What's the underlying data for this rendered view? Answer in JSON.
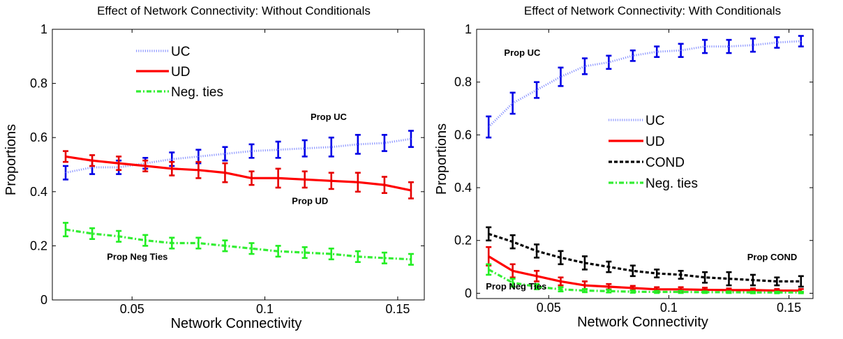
{
  "chart_data": [
    {
      "type": "line",
      "title": "Effect of Network Connectivity: Without Conditionals",
      "xlabel": "Network Connectivity",
      "ylabel": "Proportions",
      "xlim": [
        0.02,
        0.16
      ],
      "ylim": [
        0,
        1
      ],
      "xticks": [
        0.05,
        0.1,
        0.15
      ],
      "xtick_labels": [
        "0.05",
        "0.1",
        "0.15"
      ],
      "yticks": [
        0,
        0.2,
        0.4,
        0.6,
        0.8,
        1
      ],
      "ytick_labels": [
        "0",
        "0.2",
        "0.4",
        "0.6",
        "0.8",
        "1"
      ],
      "grid": false,
      "legend_position": "top-center",
      "x": [
        0.025,
        0.035,
        0.045,
        0.055,
        0.065,
        0.075,
        0.085,
        0.095,
        0.105,
        0.115,
        0.125,
        0.135,
        0.145,
        0.155
      ],
      "series": [
        {
          "name": "UC",
          "color": "#8c96ff",
          "style": "dotted",
          "error_color": "#0000e6",
          "values": [
            0.47,
            0.49,
            0.49,
            0.505,
            0.52,
            0.53,
            0.54,
            0.55,
            0.555,
            0.56,
            0.565,
            0.575,
            0.58,
            0.595
          ],
          "errors": [
            0.025,
            0.025,
            0.025,
            0.02,
            0.025,
            0.025,
            0.025,
            0.025,
            0.03,
            0.03,
            0.035,
            0.035,
            0.03,
            0.03
          ]
        },
        {
          "name": "UD",
          "color": "#ff0000",
          "style": "solid",
          "error_color": "#e60000",
          "values": [
            0.53,
            0.515,
            0.505,
            0.495,
            0.485,
            0.48,
            0.47,
            0.45,
            0.45,
            0.445,
            0.44,
            0.435,
            0.425,
            0.405
          ],
          "errors": [
            0.02,
            0.02,
            0.025,
            0.02,
            0.025,
            0.03,
            0.035,
            0.025,
            0.035,
            0.03,
            0.03,
            0.035,
            0.03,
            0.03
          ]
        },
        {
          "name": "Neg. ties",
          "color": "#33ee33",
          "style": "dashdot",
          "error_color": "#22ee22",
          "values": [
            0.26,
            0.245,
            0.235,
            0.22,
            0.21,
            0.21,
            0.2,
            0.19,
            0.18,
            0.175,
            0.17,
            0.16,
            0.155,
            0.15
          ],
          "errors": [
            0.025,
            0.02,
            0.02,
            0.02,
            0.02,
            0.02,
            0.02,
            0.02,
            0.02,
            0.02,
            0.02,
            0.02,
            0.02,
            0.02
          ]
        }
      ],
      "annotations": [
        {
          "text": "Prop UC",
          "x": 0.124,
          "y": 0.665
        },
        {
          "text": "Prop UD",
          "x": 0.117,
          "y": 0.355
        },
        {
          "text": "Prop Neg Ties",
          "x": 0.052,
          "y": 0.148
        }
      ]
    },
    {
      "type": "line",
      "title": "Effect of Network Connectivity: With Conditionals",
      "xlabel": "Network Connectivity",
      "ylabel": "Proportions",
      "xlim": [
        0.02,
        0.16
      ],
      "ylim": [
        -0.02,
        1
      ],
      "xticks": [
        0.05,
        0.1,
        0.15
      ],
      "xtick_labels": [
        "0.05",
        "0.1",
        "0.15"
      ],
      "yticks": [
        0,
        0.2,
        0.4,
        0.6,
        0.8,
        1
      ],
      "ytick_labels": [
        "0",
        "0.2",
        "0.4",
        "0.6",
        "0.8",
        "1"
      ],
      "grid": false,
      "legend_position": "center",
      "x": [
        0.025,
        0.035,
        0.045,
        0.055,
        0.065,
        0.075,
        0.085,
        0.095,
        0.105,
        0.115,
        0.125,
        0.135,
        0.145,
        0.155
      ],
      "series": [
        {
          "name": "UC",
          "color": "#8c96ff",
          "style": "dotted",
          "error_color": "#0000e6",
          "values": [
            0.63,
            0.72,
            0.77,
            0.82,
            0.86,
            0.875,
            0.9,
            0.915,
            0.92,
            0.935,
            0.935,
            0.94,
            0.95,
            0.955
          ],
          "errors": [
            0.04,
            0.04,
            0.03,
            0.035,
            0.03,
            0.025,
            0.02,
            0.02,
            0.025,
            0.025,
            0.025,
            0.025,
            0.02,
            0.02
          ]
        },
        {
          "name": "UD",
          "color": "#ff0000",
          "style": "solid",
          "error_color": "#e60000",
          "values": [
            0.14,
            0.085,
            0.065,
            0.045,
            0.03,
            0.025,
            0.02,
            0.015,
            0.015,
            0.013,
            0.012,
            0.012,
            0.01,
            0.01
          ],
          "errors": [
            0.035,
            0.025,
            0.02,
            0.015,
            0.015,
            0.01,
            0.008,
            0.008,
            0.008,
            0.008,
            0.006,
            0.006,
            0.006,
            0.006
          ]
        },
        {
          "name": "COND",
          "color": "#000000",
          "style": "dashed",
          "error_color": "#000000",
          "values": [
            0.225,
            0.195,
            0.16,
            0.135,
            0.115,
            0.1,
            0.085,
            0.075,
            0.07,
            0.06,
            0.055,
            0.05,
            0.045,
            0.045
          ],
          "errors": [
            0.025,
            0.025,
            0.025,
            0.025,
            0.025,
            0.02,
            0.02,
            0.015,
            0.015,
            0.02,
            0.025,
            0.02,
            0.015,
            0.02
          ]
        },
        {
          "name": "Neg. ties",
          "color": "#33ee33",
          "style": "dashdot",
          "error_color": "#22ee22",
          "values": [
            0.09,
            0.04,
            0.025,
            0.015,
            0.01,
            0.008,
            0.006,
            0.005,
            0.005,
            0.004,
            0.004,
            0.003,
            0.003,
            0.003
          ],
          "errors": [
            0.02,
            0.015,
            0.01,
            0.008,
            0.006,
            0.005,
            0.004,
            0.004,
            0.004,
            0.003,
            0.003,
            0.003,
            0.003,
            0.003
          ]
        }
      ],
      "annotations": [
        {
          "text": "Prop UC",
          "x": 0.039,
          "y": 0.9
        },
        {
          "text": "Prop COND",
          "x": 0.143,
          "y": 0.125
        },
        {
          "text": "Prop Neg Ties",
          "x": 0.0365,
          "y": 0.015
        }
      ]
    }
  ]
}
